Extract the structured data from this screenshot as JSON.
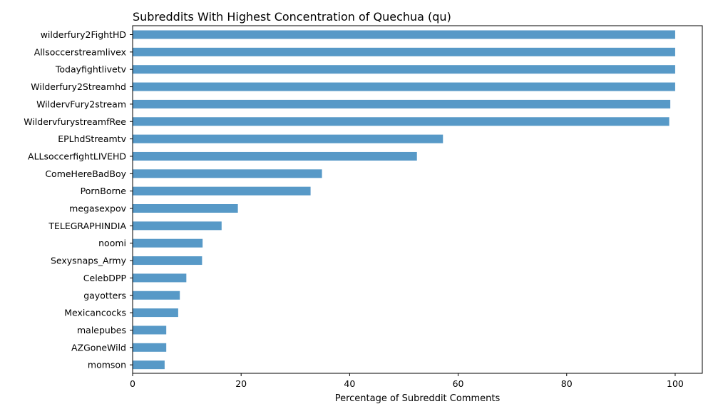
{
  "chart_data": {
    "type": "bar",
    "orientation": "horizontal",
    "title": "Subreddits With Highest Concentration of Quechua (qu)",
    "xlabel": "Percentage of Subreddit Comments",
    "ylabel": "",
    "xlim": [
      0,
      105
    ],
    "x_ticks": [
      0,
      20,
      40,
      60,
      80,
      100
    ],
    "bar_color": "#5799c7",
    "grid": false,
    "categories": [
      "wilderfury2FightHD",
      "Allsoccerstreamlivex",
      "Todayfightlivetv",
      "Wilderfury2Streamhd",
      "WildervFury2stream",
      "WildervfurystreamfRee",
      "EPLhdStreamtv",
      "ALLsoccerfightLIVEHD",
      "ComeHereBadBoy",
      "PornBorne",
      "megasexpov",
      "TELEGRAPHINDIA",
      "noomi",
      "Sexysnaps_Army",
      "CelebDPP",
      "gayotters",
      "Mexicancocks",
      "malepubes",
      "AZGoneWild",
      "momson"
    ],
    "values": [
      100,
      100,
      100,
      100,
      99.1,
      98.9,
      57.2,
      52.4,
      34.9,
      32.8,
      19.4,
      16.4,
      12.9,
      12.8,
      9.9,
      8.7,
      8.4,
      6.2,
      6.2,
      5.9
    ]
  }
}
